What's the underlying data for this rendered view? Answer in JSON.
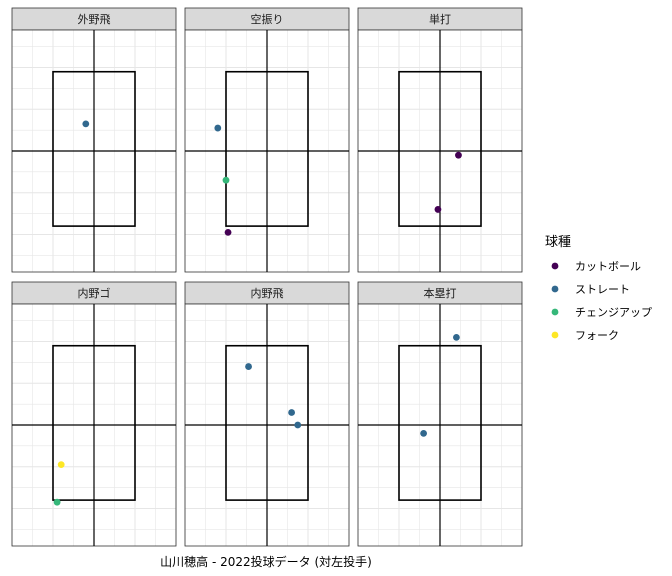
{
  "chart_data": {
    "type": "scatter",
    "caption": "山川穂高 - 2022投球データ (対左投手)",
    "legend": {
      "title": "球種",
      "position": "right",
      "entries": [
        {
          "name": "カットボール",
          "color": "#440154"
        },
        {
          "name": "ストレート",
          "color": "#31688E"
        },
        {
          "name": "チェンジアップ",
          "color": "#35B779"
        },
        {
          "name": "フォーク",
          "color": "#FDE725"
        }
      ]
    },
    "panels": [
      {
        "title": "外野飛",
        "points": [
          {
            "x": -0.2,
            "y": 0.65,
            "pitch": "ストレート"
          }
        ]
      },
      {
        "title": "空振り",
        "points": [
          {
            "x": -1.2,
            "y": 0.55,
            "pitch": "ストレート"
          },
          {
            "x": -1.0,
            "y": -0.7,
            "pitch": "チェンジアップ"
          },
          {
            "x": -0.95,
            "y": -1.95,
            "pitch": "カットボール"
          }
        ]
      },
      {
        "title": "単打",
        "points": [
          {
            "x": 0.45,
            "y": -0.1,
            "pitch": "カットボール"
          },
          {
            "x": -0.05,
            "y": -1.4,
            "pitch": "カットボール"
          }
        ]
      },
      {
        "title": "内野ゴ",
        "points": [
          {
            "x": -0.8,
            "y": -0.95,
            "pitch": "フォーク"
          },
          {
            "x": -0.9,
            "y": -1.85,
            "pitch": "チェンジアップ"
          }
        ]
      },
      {
        "title": "内野飛",
        "points": [
          {
            "x": -0.45,
            "y": 1.4,
            "pitch": "ストレート"
          },
          {
            "x": 0.6,
            "y": 0.3,
            "pitch": "ストレート"
          },
          {
            "x": 0.75,
            "y": 0.0,
            "pitch": "ストレート"
          }
        ]
      },
      {
        "title": "本塁打",
        "points": [
          {
            "x": 0.4,
            "y": 2.1,
            "pitch": "ストレート"
          },
          {
            "x": -0.4,
            "y": -0.2,
            "pitch": "ストレート"
          }
        ]
      }
    ],
    "xlim": [
      -2.0,
      2.0
    ],
    "ylim": [
      -2.9,
      2.9
    ],
    "strike_zone": {
      "x": [
        -1.0,
        1.0
      ],
      "y": [
        -1.8,
        1.9
      ]
    },
    "grid": true
  }
}
